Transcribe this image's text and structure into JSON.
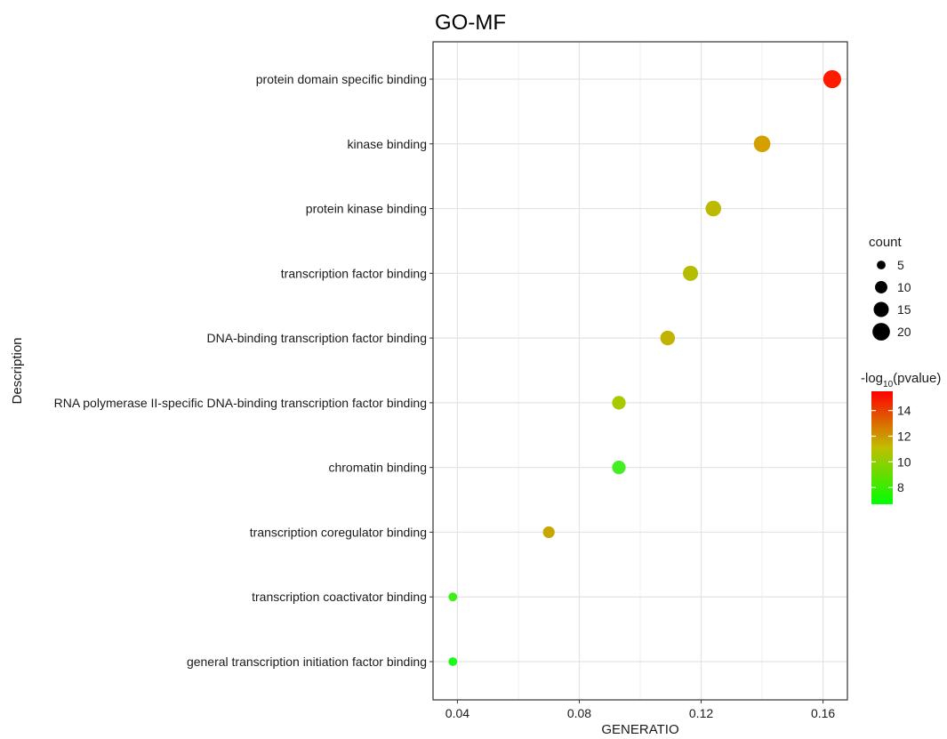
{
  "chart_data": {
    "type": "scatter",
    "title": "GO-MF",
    "xlabel": "GENERATIO",
    "ylabel": "Description",
    "xlim": [
      0.032,
      0.168
    ],
    "xticks": [
      0.04,
      0.08,
      0.12,
      0.16
    ],
    "xtick_labels": [
      "0.04",
      "0.08",
      "0.12",
      "0.16"
    ],
    "grid": true,
    "points": [
      {
        "label": "protein domain specific binding",
        "x": 0.163,
        "count": 21,
        "neglog10p": 15.3,
        "color": "#ff1a00"
      },
      {
        "label": "kinase binding",
        "x": 0.14,
        "count": 18,
        "neglog10p": 11.8,
        "color": "#d4a000"
      },
      {
        "label": "protein kinase binding",
        "x": 0.124,
        "count": 16,
        "neglog10p": 10.6,
        "color": "#bdb800"
      },
      {
        "label": "transcription factor binding",
        "x": 0.1165,
        "count": 15,
        "neglog10p": 10.3,
        "color": "#b5bd00"
      },
      {
        "label": "DNA-binding transcription factor binding",
        "x": 0.109,
        "count": 14,
        "neglog10p": 10.8,
        "color": "#c2b300"
      },
      {
        "label": "RNA polymerase II-specific DNA-binding transcription factor binding",
        "x": 0.093,
        "count": 12,
        "neglog10p": 9.8,
        "color": "#a8c800"
      },
      {
        "label": "chromatin binding",
        "x": 0.093,
        "count": 12,
        "neglog10p": 7.3,
        "color": "#44ee22"
      },
      {
        "label": "transcription coregulator binding",
        "x": 0.07,
        "count": 9,
        "neglog10p": 11.0,
        "color": "#c6a800"
      },
      {
        "label": "transcription coactivator binding",
        "x": 0.0385,
        "count": 5,
        "neglog10p": 7.0,
        "color": "#3ef01a"
      },
      {
        "label": "general transcription initiation factor binding",
        "x": 0.0385,
        "count": 5,
        "neglog10p": 6.8,
        "color": "#1ef81a"
      }
    ],
    "legend": {
      "placement": "right",
      "size_title": "count",
      "size_values": [
        5,
        10,
        15,
        20
      ],
      "size_labels": [
        "5",
        "10",
        "15",
        "20"
      ],
      "color_title_main": "-log",
      "color_title_sub": "10",
      "color_title_rest": "(pvalue)",
      "color_range": [
        6.7,
        15.5
      ],
      "color_ticks": [
        8,
        10,
        12,
        14
      ],
      "color_tick_labels": [
        "8",
        "10",
        "12",
        "14"
      ],
      "color_low": "#00ff00",
      "color_high": "#ff0000"
    }
  }
}
